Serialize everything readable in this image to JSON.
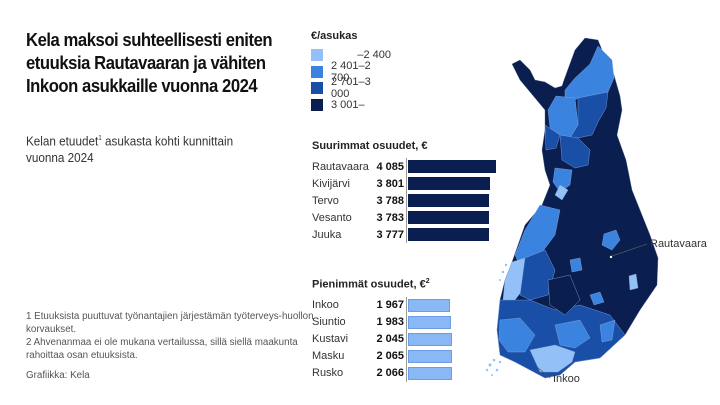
{
  "title": "Kela maksoi suhteellisesti eniten etuuksia Rautavaaran ja vähiten Inkoon asukkaille vuonna 2024",
  "subtitle": {
    "prefix": "Kelan etuudet",
    "sup": "1",
    "suffix": " asukasta kohti kunnittain vuonna 2024"
  },
  "footnotes": {
    "note1": "1 Etuuksista puuttuvat työnantajien järjestämän työterveys-huollon korvaukset.",
    "note2": "2 Ahvenanmaa ei ole mukana vertailussa, sillä siellä maakunta rahoittaa osan etuuksista.",
    "credit": "Grafiikka: Kela"
  },
  "legend": {
    "title": "€/asukas",
    "items": [
      {
        "label": "–2 400",
        "color": "#93c0f7"
      },
      {
        "label": "2 401–2 700",
        "color": "#3a84e0"
      },
      {
        "label": "2 701–3 000",
        "color": "#1a4fa8"
      },
      {
        "label": "3 001–",
        "color": "#0a1f4f"
      }
    ]
  },
  "map": {
    "callouts": {
      "top": "Rautavaara",
      "bottom": "Inkoo"
    }
  },
  "chart_data": [
    {
      "type": "bar",
      "title": "Suurimmat osuudet, €",
      "orientation": "horizontal",
      "categories": [
        "Rautavaara",
        "Kivijärvi",
        "Tervo",
        "Vesanto",
        "Juuka"
      ],
      "values": [
        4085,
        3801,
        3788,
        3783,
        3777
      ],
      "labels": [
        "4 085",
        "3 801",
        "3 788",
        "3 783",
        "3 777"
      ],
      "color": "#0a1f4f"
    },
    {
      "type": "bar",
      "title": "Pienimmät osuudet, €",
      "title_sup": "2",
      "orientation": "horizontal",
      "categories": [
        "Inkoo",
        "Siuntio",
        "Kustavi",
        "Masku",
        "Rusko"
      ],
      "values": [
        1967,
        1983,
        2045,
        2065,
        2066
      ],
      "labels": [
        "1 967",
        "1 983",
        "2 045",
        "2 065",
        "2 066"
      ],
      "color": "#8ab8f5"
    },
    {
      "type": "heatmap",
      "title": "Kelan etuudet asukasta kohti kunnittain vuonna 2024 (choropleth map of Finland)",
      "legend_title": "€/asukas",
      "bins": [
        "–2 400",
        "2 401–2 700",
        "2 701–3 000",
        "3 001–"
      ],
      "annotations": [
        "Rautavaara",
        "Inkoo"
      ]
    }
  ]
}
